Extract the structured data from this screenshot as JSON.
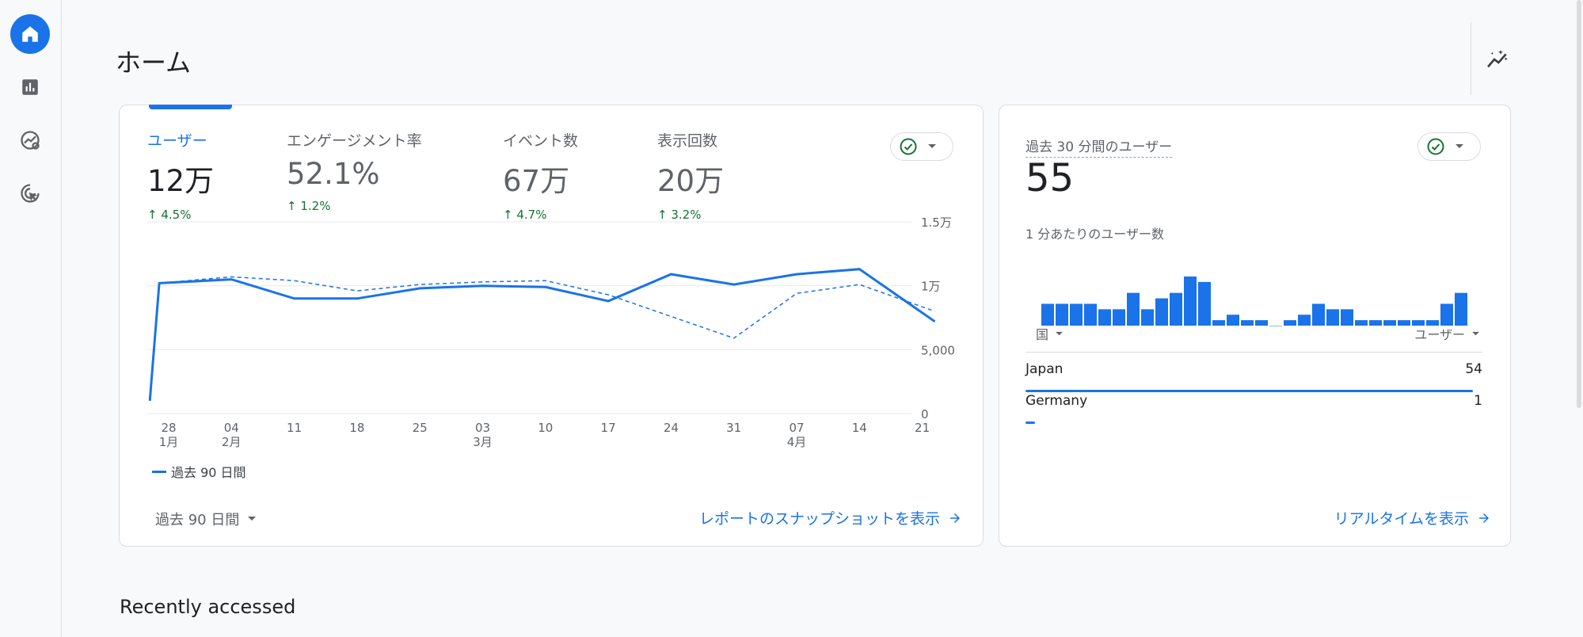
{
  "page": {
    "title": "ホーム",
    "recent_title": "Recently accessed"
  },
  "nav": [
    {
      "name": "home",
      "icon": "home-icon",
      "active": true
    },
    {
      "name": "reports",
      "icon": "bar-chart-icon",
      "active": false
    },
    {
      "name": "explore",
      "icon": "explore-icon",
      "active": false
    },
    {
      "name": "advertising",
      "icon": "cursor-target-icon",
      "active": false
    }
  ],
  "colors": {
    "accent": "#1a73e8",
    "positive": "#137333",
    "border": "#dadce0",
    "background": "#f8f9fa"
  },
  "metrics": [
    {
      "label": "ユーザー",
      "value": "12万",
      "change": "4.5%",
      "active": true
    },
    {
      "label": "エンゲージメント率",
      "value": "52.1%",
      "change": "1.2%",
      "active": false
    },
    {
      "label": "イベント数",
      "value": "67万",
      "change": "4.7%",
      "active": false
    },
    {
      "label": "表示回数",
      "value": "20万",
      "change": "3.2%",
      "active": false
    }
  ],
  "chart_data": {
    "type": "line",
    "title": "",
    "xlabel": "",
    "ylabel": "",
    "y_ticks": [
      "1.5万",
      "1万",
      "5,000",
      "0"
    ],
    "ylim": [
      0,
      15000
    ],
    "x": [
      0,
      1,
      2,
      3,
      4,
      5,
      6,
      7,
      8,
      9,
      10,
      11,
      12,
      13
    ],
    "x_tick_labels": [
      {
        "day": "28",
        "month": "1月"
      },
      {
        "day": "04",
        "month": "2月"
      },
      {
        "day": "11",
        "month": ""
      },
      {
        "day": "18",
        "month": ""
      },
      {
        "day": "25",
        "month": ""
      },
      {
        "day": "03",
        "month": "3月"
      },
      {
        "day": "10",
        "month": ""
      },
      {
        "day": "17",
        "month": ""
      },
      {
        "day": "24",
        "month": ""
      },
      {
        "day": "31",
        "month": ""
      },
      {
        "day": "07",
        "month": "4月"
      },
      {
        "day": "14",
        "month": ""
      },
      {
        "day": "21",
        "month": ""
      }
    ],
    "series": [
      {
        "name": "過去 90 日間",
        "style": "solid",
        "x": [
          -0.3,
          -0.15,
          1,
          2,
          3,
          4,
          5,
          6,
          7,
          8,
          9,
          10,
          11,
          12.2
        ],
        "values": [
          1000,
          10200,
          10500,
          9000,
          9000,
          9800,
          10000,
          9900,
          8800,
          10900,
          10100,
          10900,
          11300,
          7200
        ]
      },
      {
        "name": "",
        "style": "dashed",
        "x": [
          -0.15,
          1,
          2,
          3,
          4,
          5,
          6,
          7,
          8,
          9,
          10,
          11,
          12.2
        ],
        "values": [
          10200,
          10700,
          10400,
          9600,
          10100,
          10300,
          10400,
          9300,
          7600,
          5900,
          9400,
          10100,
          8000
        ]
      }
    ],
    "legend": "bottom-left",
    "grid": true
  },
  "legend_label": "過去 90 日間",
  "date_range": "過去 90 日間",
  "snapshot_link": "レポートのスナップショットを表示",
  "realtime": {
    "title": "過去 30 分間のユーザー",
    "value": "55",
    "per_minute_label": "1 分あたりのユーザー数",
    "per_minute": [
      4,
      4,
      4,
      4,
      3,
      3,
      6,
      3,
      5,
      6,
      9,
      8,
      1,
      2,
      1,
      1,
      0,
      1,
      2,
      4,
      3,
      3,
      1,
      1,
      1,
      1,
      1,
      1,
      4,
      6
    ],
    "col_country": "国",
    "col_users": "ユーザー",
    "rows": [
      {
        "country": "Japan",
        "users": "54",
        "share": 0.98
      },
      {
        "country": "Germany",
        "users": "1",
        "share": 0.02
      }
    ],
    "link": "リアルタイムを表示"
  }
}
